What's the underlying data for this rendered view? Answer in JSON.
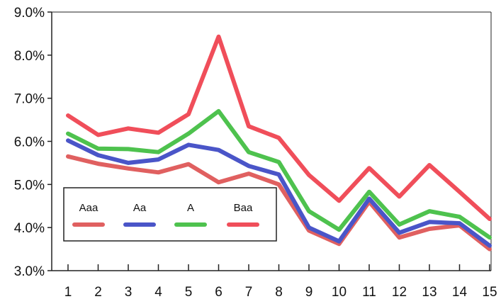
{
  "chart_data": {
    "type": "line",
    "title": "",
    "xlabel": "",
    "ylabel": "",
    "categories": [
      "1",
      "2",
      "3",
      "4",
      "5",
      "6",
      "7",
      "8",
      "9",
      "10",
      "11",
      "12",
      "13",
      "14",
      "15"
    ],
    "ylim": [
      3.0,
      9.0
    ],
    "y_ticks": [
      "3.0%",
      "4.0%",
      "5.0%",
      "6.0%",
      "7.0%",
      "8.0%",
      "9.0%"
    ],
    "grid": false,
    "legend_position": "lower-left",
    "series": [
      {
        "name": "Aaa",
        "color": "#e06060",
        "values": [
          5.65,
          5.48,
          5.37,
          5.28,
          5.47,
          5.05,
          5.25,
          5.0,
          3.93,
          3.62,
          4.6,
          3.77,
          3.97,
          4.05,
          3.5
        ]
      },
      {
        "name": "Aa",
        "color": "#4a55c8",
        "values": [
          6.02,
          5.68,
          5.5,
          5.58,
          5.92,
          5.8,
          5.43,
          5.23,
          4.0,
          3.68,
          4.67,
          3.88,
          4.13,
          4.1,
          3.58
        ]
      },
      {
        "name": "A",
        "color": "#4ec24e",
        "values": [
          6.18,
          5.83,
          5.82,
          5.75,
          6.18,
          6.7,
          5.75,
          5.52,
          4.38,
          3.95,
          4.83,
          4.07,
          4.38,
          4.25,
          3.77
        ]
      },
      {
        "name": "Baa",
        "color": "#f04e5a",
        "values": [
          6.6,
          6.15,
          6.3,
          6.2,
          6.63,
          8.43,
          6.35,
          6.08,
          5.22,
          4.62,
          5.38,
          4.72,
          5.45,
          4.83,
          4.2
        ]
      }
    ]
  }
}
